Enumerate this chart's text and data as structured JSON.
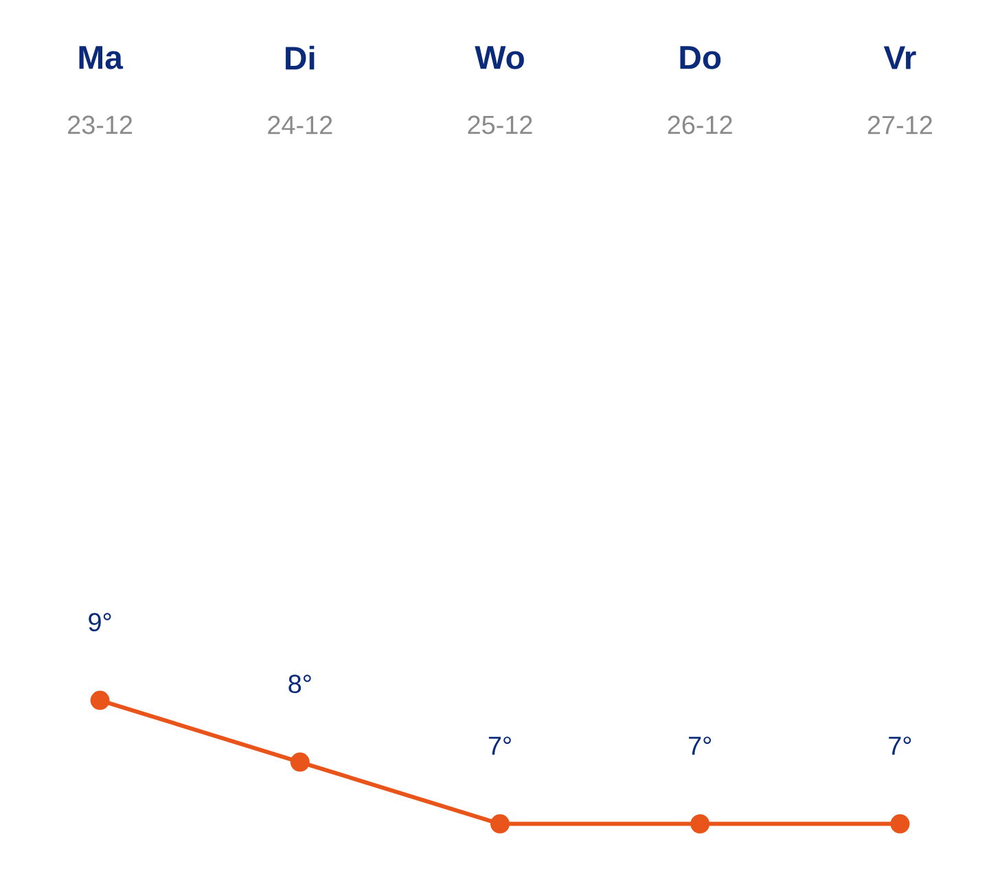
{
  "chart_data": {
    "type": "line",
    "categories": [
      "Ma",
      "Di",
      "Wo",
      "Do",
      "Vr"
    ],
    "annotations": [
      "23-12",
      "24-12",
      "25-12",
      "26-12",
      "27-12"
    ],
    "values": [
      9,
      8,
      7,
      7,
      7
    ],
    "value_labels": [
      "9°",
      "8°",
      "7°",
      "7°",
      "7°"
    ],
    "color": "#e8541a",
    "marker": "circle"
  }
}
